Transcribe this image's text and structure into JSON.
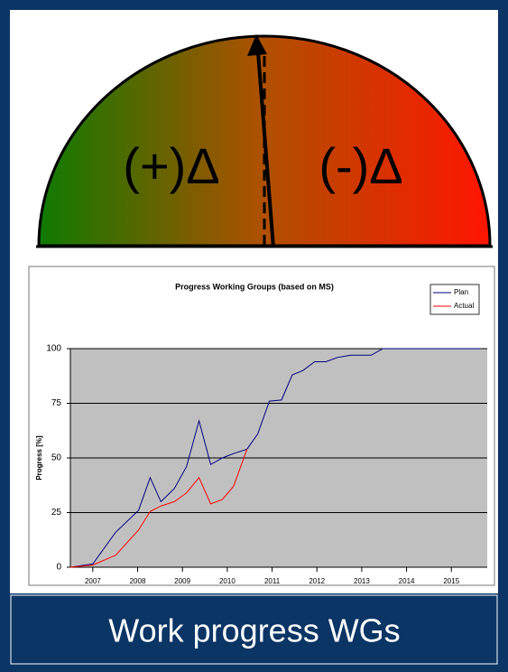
{
  "gauge": {
    "left_label": "(+)Δ",
    "right_label": "(-)Δ"
  },
  "chart_data": {
    "type": "line",
    "title": "Progress Working Groups (based on MS)",
    "ylabel": "Progress [%]",
    "x": [
      2007.0,
      2007.5,
      2008.01,
      2008.52,
      2008.78,
      2009.02,
      2009.32,
      2009.59,
      2009.87,
      2010.13,
      2010.39,
      2010.64,
      2010.94,
      2011.18,
      2011.44,
      2011.71,
      2011.95,
      2012.19,
      2012.45,
      2012.7,
      2012.96,
      2013.26,
      2013.71,
      2013.97,
      2016.15
    ],
    "series": [
      {
        "name": "Plan",
        "color": "#000080",
        "values": [
          0,
          1.5,
          16,
          26,
          41,
          30,
          36,
          46,
          67,
          47,
          50,
          52,
          54,
          61,
          76,
          76.5,
          88,
          90,
          94,
          94,
          96,
          97,
          97,
          100,
          100
        ]
      },
      {
        "name": "Actual",
        "color": "#ff0000",
        "values": [
          0,
          1,
          5.5,
          17,
          25.5,
          28,
          30,
          34,
          41,
          29,
          31,
          37,
          54,
          null,
          null,
          null,
          null,
          null,
          null,
          null,
          null,
          null,
          null,
          null,
          null
        ]
      }
    ],
    "xlim": [
      2007.0,
      2016.3
    ],
    "xticks": [
      {
        "value": 2007.5,
        "label": "2007"
      },
      {
        "value": 2008.5,
        "label": "2008"
      },
      {
        "value": 2009.5,
        "label": "2009"
      },
      {
        "value": 2010.5,
        "label": "2010"
      },
      {
        "value": 2011.5,
        "label": "2011"
      },
      {
        "value": 2012.5,
        "label": "2012"
      },
      {
        "value": 2013.5,
        "label": "2013"
      },
      {
        "value": 2014.5,
        "label": "2014"
      },
      {
        "value": 2015.5,
        "label": "2015"
      }
    ],
    "ylim": [
      0,
      100
    ],
    "yticks": [
      0,
      25,
      50,
      75,
      100
    ],
    "grid": true,
    "legend": "top-right"
  },
  "caption": "Work progress WGs"
}
